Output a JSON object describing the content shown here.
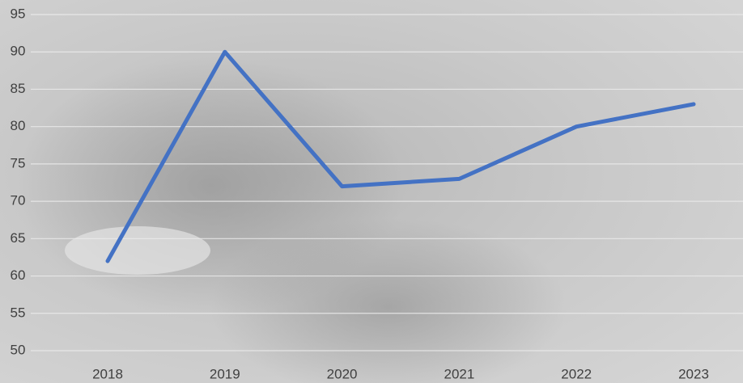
{
  "chart_data": {
    "type": "line",
    "categories": [
      "2018",
      "2019",
      "2020",
      "2021",
      "2022",
      "2023"
    ],
    "series": [
      {
        "color": "#4472c4",
        "values": [
          62,
          90,
          72,
          73,
          80,
          83
        ]
      }
    ],
    "ylim": [
      50,
      95
    ],
    "yticks": [
      50,
      55,
      60,
      65,
      70,
      75,
      80,
      85,
      90,
      95
    ],
    "grid": true
  }
}
